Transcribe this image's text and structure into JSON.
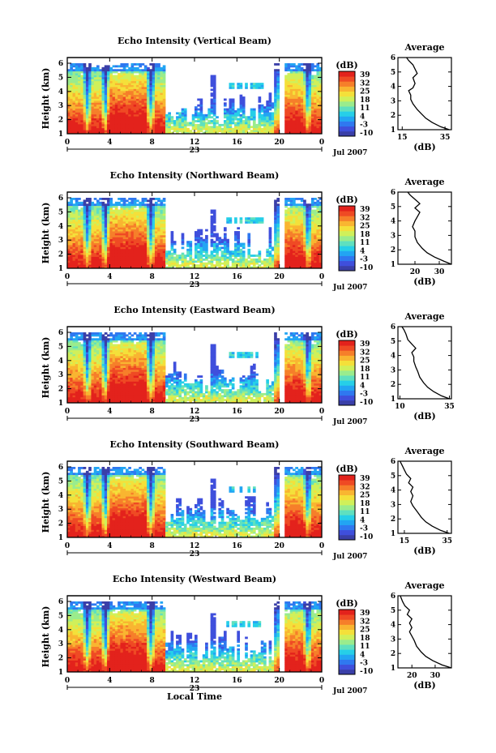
{
  "chart_data": [
    {
      "type": "heatmap",
      "title": "Echo Intensity (Vertical Beam)",
      "xlabel": "",
      "ylabel": "Height (km)",
      "x_ticks": [
        "0",
        "4",
        "8",
        "12",
        "16",
        "20",
        "0"
      ],
      "date_mark": "23",
      "date_label": "Jul 2007",
      "y_ticks": [
        "1",
        "2",
        "3",
        "4",
        "5",
        "6"
      ],
      "ylim": [
        1,
        6
      ],
      "colorbar": {
        "unit": "(dB)",
        "ticks": [
          "39",
          "32",
          "25",
          "18",
          "11",
          "4",
          "-3",
          "-10"
        ]
      },
      "profile": {
        "title": "Average",
        "xlabel": "(dB)",
        "x_ticks": [
          "15",
          "35"
        ],
        "xlim": [
          13,
          38
        ],
        "y_ticks": [
          "1",
          "2",
          "3",
          "4",
          "5",
          "6"
        ],
        "ylim": [
          1,
          6
        ],
        "points": [
          [
            37,
            1.0
          ],
          [
            33,
            1.2
          ],
          [
            29,
            1.5
          ],
          [
            26,
            1.8
          ],
          [
            24,
            2.1
          ],
          [
            22,
            2.4
          ],
          [
            20,
            2.8
          ],
          [
            19,
            3.1
          ],
          [
            19,
            3.4
          ],
          [
            18,
            3.7
          ],
          [
            20,
            3.9
          ],
          [
            21,
            4.2
          ],
          [
            20,
            4.6
          ],
          [
            22,
            4.9
          ],
          [
            21,
            5.2
          ],
          [
            20,
            5.5
          ],
          [
            18,
            5.8
          ],
          [
            17,
            6.0
          ]
        ]
      }
    },
    {
      "type": "heatmap",
      "title": "Echo Intensity (Northward Beam)",
      "xlabel": "",
      "ylabel": "Height (km)",
      "x_ticks": [
        "0",
        "4",
        "8",
        "12",
        "16",
        "20",
        "0"
      ],
      "date_mark": "23",
      "date_label": "Jul 2007",
      "y_ticks": [
        "1",
        "2",
        "3",
        "4",
        "5",
        "6"
      ],
      "ylim": [
        1,
        6
      ],
      "colorbar": {
        "unit": "(dB)",
        "ticks": [
          "39",
          "32",
          "25",
          "18",
          "11",
          "4",
          "-3",
          "-10"
        ]
      },
      "profile": {
        "title": "Average",
        "xlabel": "(dB)",
        "x_ticks": [
          "20",
          "30"
        ],
        "xlim": [
          13,
          35
        ],
        "y_ticks": [
          "1",
          "2",
          "3",
          "4",
          "5",
          "6"
        ],
        "ylim": [
          1,
          6
        ],
        "points": [
          [
            35,
            1.0
          ],
          [
            32,
            1.2
          ],
          [
            28,
            1.5
          ],
          [
            25,
            1.8
          ],
          [
            23,
            2.1
          ],
          [
            21,
            2.5
          ],
          [
            20,
            2.9
          ],
          [
            20,
            3.3
          ],
          [
            19,
            3.6
          ],
          [
            20,
            4.0
          ],
          [
            21,
            4.3
          ],
          [
            22,
            4.6
          ],
          [
            20,
            4.9
          ],
          [
            22,
            5.2
          ],
          [
            20,
            5.5
          ],
          [
            18,
            5.8
          ],
          [
            17,
            6.0
          ]
        ]
      }
    },
    {
      "type": "heatmap",
      "title": "Echo Intensity (Eastward Beam)",
      "xlabel": "",
      "ylabel": "Height (km)",
      "x_ticks": [
        "0",
        "4",
        "8",
        "12",
        "16",
        "20",
        "0"
      ],
      "date_mark": "23",
      "date_label": "Jul 2007",
      "y_ticks": [
        "1",
        "2",
        "3",
        "4",
        "5",
        "6"
      ],
      "ylim": [
        1,
        6
      ],
      "colorbar": {
        "unit": "(dB)",
        "ticks": [
          "39",
          "32",
          "25",
          "18",
          "11",
          "4",
          "-3",
          "-10"
        ]
      },
      "profile": {
        "title": "Average",
        "xlabel": "(dB)",
        "x_ticks": [
          "10",
          "35"
        ],
        "xlim": [
          9,
          36
        ],
        "y_ticks": [
          "1",
          "2",
          "3",
          "4",
          "5",
          "6"
        ],
        "ylim": [
          1,
          6
        ],
        "points": [
          [
            35,
            1.0
          ],
          [
            31,
            1.2
          ],
          [
            27,
            1.5
          ],
          [
            24,
            1.8
          ],
          [
            22,
            2.1
          ],
          [
            20,
            2.5
          ],
          [
            19,
            2.9
          ],
          [
            18,
            3.2
          ],
          [
            17,
            3.6
          ],
          [
            17,
            3.9
          ],
          [
            16,
            4.2
          ],
          [
            18,
            4.5
          ],
          [
            16,
            4.8
          ],
          [
            14,
            5.1
          ],
          [
            13,
            5.5
          ],
          [
            12,
            5.8
          ],
          [
            11,
            6.0
          ]
        ]
      }
    },
    {
      "type": "heatmap",
      "title": "Echo Intensity (Southward Beam)",
      "xlabel": "",
      "ylabel": "Height (km)",
      "x_ticks": [
        "0",
        "4",
        "8",
        "12",
        "16",
        "20",
        "0"
      ],
      "date_mark": "23",
      "date_label": "Jul 2007",
      "y_ticks": [
        "1",
        "2",
        "3",
        "4",
        "5",
        "6"
      ],
      "ylim": [
        1,
        6
      ],
      "colorbar": {
        "unit": "(dB)",
        "ticks": [
          "39",
          "32",
          "25",
          "18",
          "11",
          "4",
          "-3",
          "-10"
        ]
      },
      "profile": {
        "title": "Average",
        "xlabel": "(dB)",
        "x_ticks": [
          "15",
          "35"
        ],
        "xlim": [
          12,
          37
        ],
        "y_ticks": [
          "1",
          "2",
          "3",
          "4",
          "5",
          "6"
        ],
        "ylim": [
          1,
          6
        ],
        "points": [
          [
            36,
            1.0
          ],
          [
            32,
            1.2
          ],
          [
            28,
            1.5
          ],
          [
            25,
            1.8
          ],
          [
            23,
            2.1
          ],
          [
            21,
            2.5
          ],
          [
            19,
            2.9
          ],
          [
            18,
            3.2
          ],
          [
            19,
            3.6
          ],
          [
            18,
            3.9
          ],
          [
            19,
            4.2
          ],
          [
            17,
            4.5
          ],
          [
            18,
            4.8
          ],
          [
            16,
            5.1
          ],
          [
            15,
            5.4
          ],
          [
            14,
            5.7
          ],
          [
            13,
            6.0
          ]
        ]
      }
    },
    {
      "type": "heatmap",
      "title": "Echo Intensity (Westward Beam)",
      "xlabel": "Local Time",
      "ylabel": "Height (km)",
      "x_ticks": [
        "0",
        "4",
        "8",
        "12",
        "16",
        "20",
        "0"
      ],
      "date_mark": "23",
      "date_label": "Jul 2007",
      "y_ticks": [
        "1",
        "2",
        "3",
        "4",
        "5",
        "6"
      ],
      "ylim": [
        1,
        6
      ],
      "colorbar": {
        "unit": "(dB)",
        "ticks": [
          "39",
          "32",
          "25",
          "18",
          "11",
          "4",
          "-3",
          "-10"
        ]
      },
      "profile": {
        "title": "Average",
        "xlabel": "(dB)",
        "x_ticks": [
          "20",
          "30"
        ],
        "xlim": [
          14,
          37
        ],
        "y_ticks": [
          "1",
          "2",
          "3",
          "4",
          "5",
          "6"
        ],
        "ylim": [
          1,
          6
        ],
        "points": [
          [
            37,
            1.0
          ],
          [
            33,
            1.2
          ],
          [
            29,
            1.5
          ],
          [
            26,
            1.8
          ],
          [
            24,
            2.1
          ],
          [
            22,
            2.5
          ],
          [
            21,
            2.9
          ],
          [
            20,
            3.2
          ],
          [
            19,
            3.5
          ],
          [
            20,
            3.8
          ],
          [
            19,
            4.1
          ],
          [
            20,
            4.4
          ],
          [
            18,
            4.7
          ],
          [
            19,
            5.0
          ],
          [
            17,
            5.3
          ],
          [
            16,
            5.6
          ],
          [
            15,
            6.0
          ]
        ]
      }
    }
  ]
}
